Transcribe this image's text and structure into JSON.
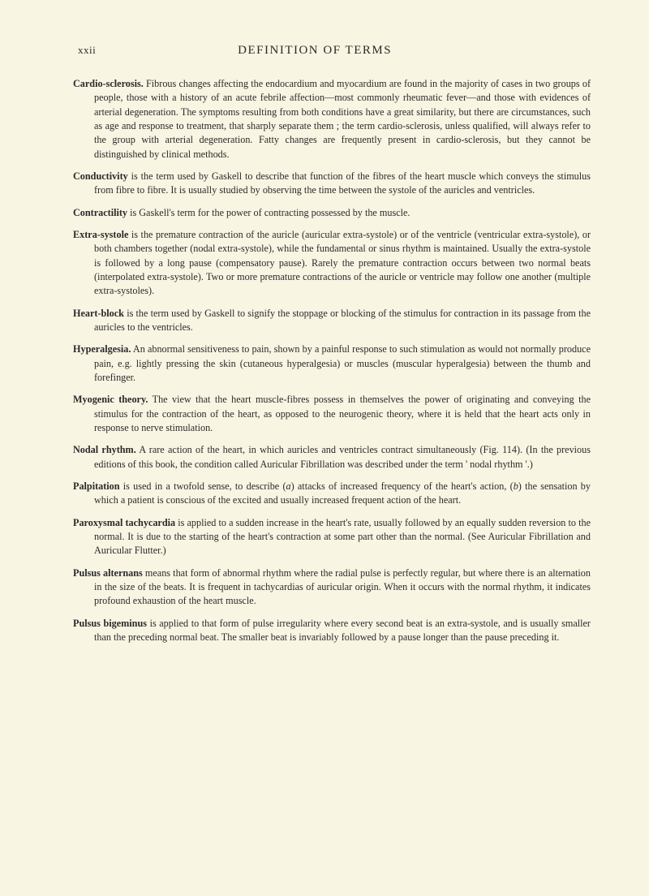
{
  "header": {
    "pageNum": "xxii",
    "title": "DEFINITION OF TERMS"
  },
  "entries": [
    {
      "term": "Cardio-sclerosis.",
      "text": "Fibrous changes affecting the endocardium and myocardium are found in the majority of cases in two groups of people, those with a history of an acute febrile affection—most commonly rheumatic fever—and those with evidences of arterial degeneration. The symptoms resulting from both conditions have a great similarity, but there are circumstances, such as age and response to treatment, that sharply separate them ; the term cardio-sclerosis, unless qualified, will always refer to the group with arterial degeneration. Fatty changes are frequently present in cardio-sclerosis, but they cannot be distinguished by clinical methods."
    },
    {
      "term": "Conductivity",
      "text": "is the term used by Gaskell to describe that function of the fibres of the heart muscle which conveys the stimulus from fibre to fibre. It is usually studied by observing the time between the systole of the auricles and ventricles."
    },
    {
      "term": "Contractility",
      "text": "is Gaskell's term for the power of contracting possessed by the muscle."
    },
    {
      "term": "Extra-systole",
      "text": "is the premature contraction of the auricle (auricular extra-systole) or of the ventricle (ventricular extra-systole), or both chambers together (nodal extra-systole), while the fundamental or sinus rhythm is maintained. Usually the extra-systole is followed by a long pause (compensatory pause). Rarely the premature contraction occurs between two normal beats (interpolated extra-systole). Two or more premature contractions of the auricle or ventricle may follow one another (multiple extra-systoles)."
    },
    {
      "term": "Heart-block",
      "text": "is the term used by Gaskell to signify the stoppage or blocking of the stimulus for contraction in its passage from the auricles to the ventricles."
    },
    {
      "term": "Hyperalgesia.",
      "text": "An abnormal sensitiveness to pain, shown by a painful response to such stimulation as would not normally produce pain, e.g. lightly pressing the skin (cutaneous hyperalgesia) or muscles (muscular hyperalgesia) between the thumb and forefinger."
    },
    {
      "term": "Myogenic theory.",
      "text": "The view that the heart muscle-fibres possess in themselves the power of originating and conveying the stimulus for the contraction of the heart, as opposed to the neurogenic theory, where it is held that the heart acts only in response to nerve stimulation."
    },
    {
      "term": "Nodal rhythm.",
      "text": "A rare action of the heart, in which auricles and ventricles contract simultaneously (Fig. 114). (In the previous editions of this book, the condition called Auricular Fibrillation was described under the term ' nodal rhythm '.)"
    },
    {
      "term": "Palpitation",
      "text_a": "is used in a twofold sense, to describe (",
      "text_b": ") attacks of increased frequency of the heart's action, (",
      "text_c": ") the sensation by which a patient is conscious of the excited and usually increased frequent action of the heart.",
      "i1": "a",
      "i2": "b"
    },
    {
      "term": "Paroxysmal tachycardia",
      "text": "is applied to a sudden increase in the heart's rate, usually followed by an equally sudden reversion to the normal. It is due to the starting of the heart's contraction at some part other than the normal. (See Auricular Fibrillation and Auricular Flutter.)"
    },
    {
      "term": "Pulsus alternans",
      "text": "means that form of abnormal rhythm where the radial pulse is perfectly regular, but where there is an alternation in the size of the beats. It is frequent in tachycardias of auricular origin. When it occurs with the normal rhythm, it indicates profound exhaustion of the heart muscle."
    },
    {
      "term": "Pulsus bigeminus",
      "text": "is applied to that form of pulse irregularity where every second beat is an extra-systole, and is usually smaller than the preceding normal beat. The smaller beat is invariably followed by a pause longer than the pause preceding it."
    }
  ]
}
